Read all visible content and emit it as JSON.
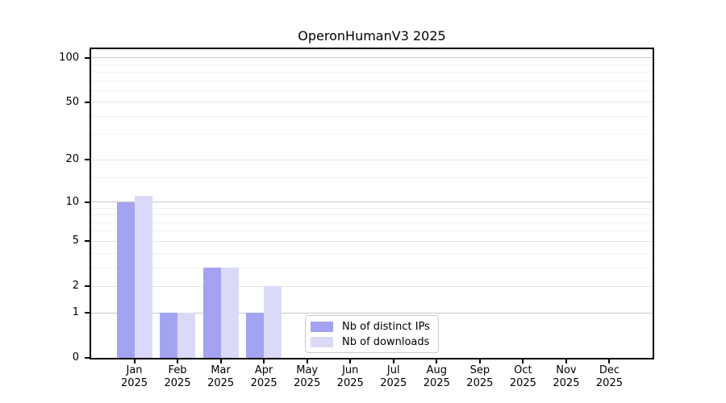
{
  "chart_data": {
    "type": "bar",
    "title": "OperonHumanV3 2025",
    "year": "2025",
    "months": [
      "Jan",
      "Feb",
      "Mar",
      "Apr",
      "May",
      "Jun",
      "Jul",
      "Aug",
      "Sep",
      "Oct",
      "Nov",
      "Dec"
    ],
    "series": [
      {
        "name": "Nb of distinct IPs",
        "color": "#a3a3f2",
        "values": [
          10,
          1,
          3,
          1,
          0,
          0,
          0,
          0,
          0,
          0,
          0,
          0
        ]
      },
      {
        "name": "Nb of downloads",
        "color": "#dadaf8",
        "values": [
          11,
          1,
          3,
          2,
          0,
          0,
          0,
          0,
          0,
          0,
          0,
          0
        ]
      }
    ],
    "yscale": "log1p",
    "y_ticks": [
      0,
      1,
      2,
      5,
      10,
      20,
      50,
      100
    ],
    "y_minor_gridlines": [
      3,
      4,
      6,
      7,
      8,
      9,
      15,
      30,
      40,
      60,
      70,
      80,
      90
    ],
    "ylim": [
      0,
      114
    ],
    "xlabel": "",
    "ylabel": "",
    "grid": true,
    "legend_position": "lower center"
  }
}
